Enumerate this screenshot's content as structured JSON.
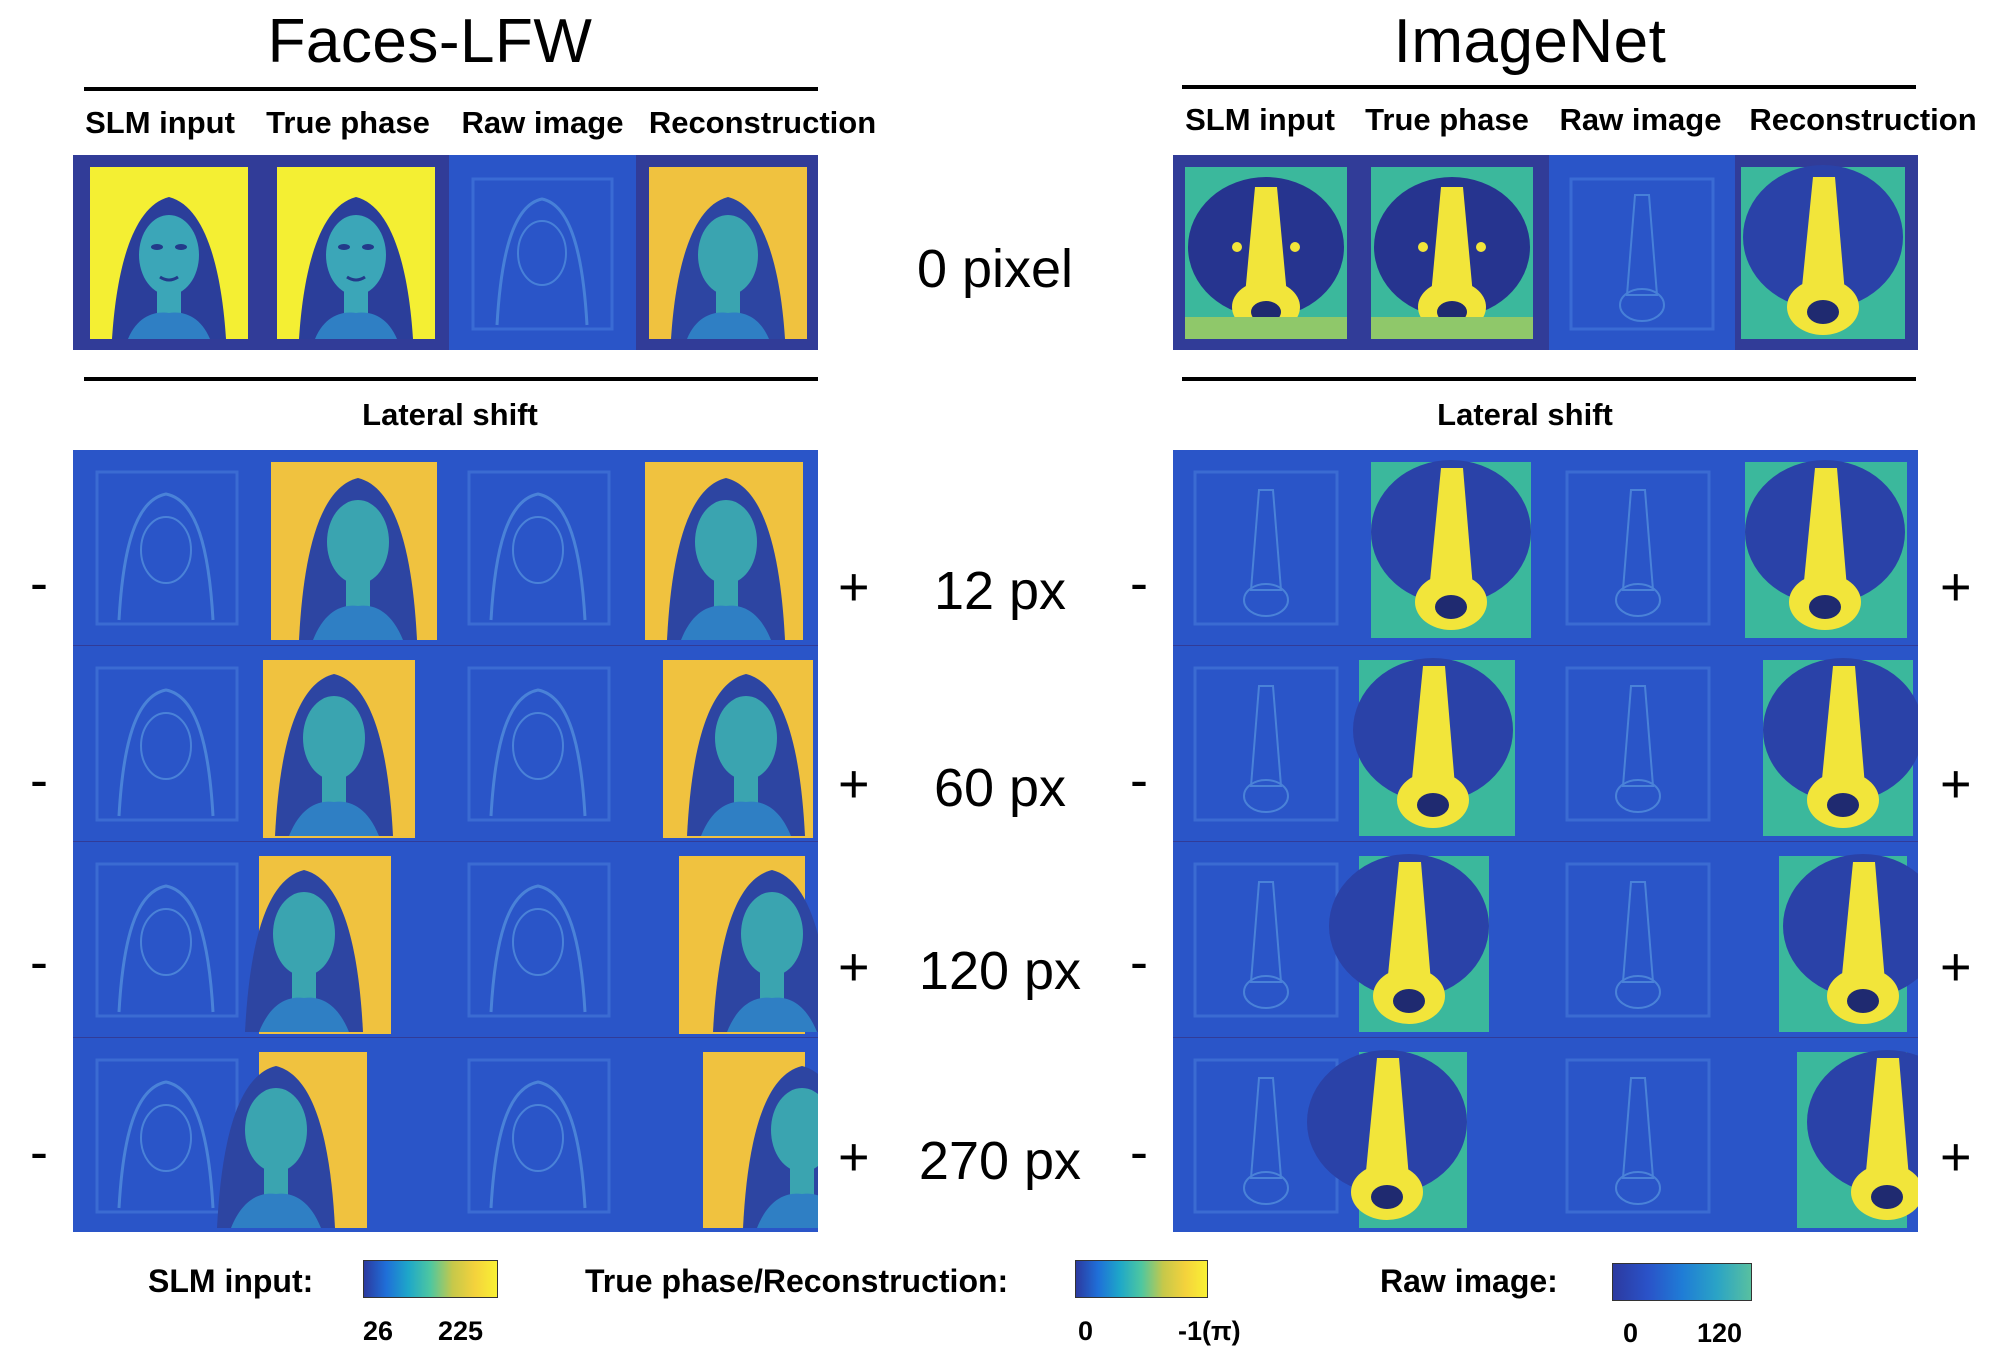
{
  "figure": {
    "left_dataset": "Faces-LFW",
    "right_dataset": "ImageNet",
    "column_headers": [
      "SLM input",
      "True phase",
      "Raw image",
      "Reconstruction"
    ],
    "section_label": "Lateral shift",
    "zero_row_label": "0 pixel",
    "shift_rows": [
      {
        "label": "12 px",
        "minus": "-",
        "plus": "+"
      },
      {
        "label": "60 px",
        "minus": "-",
        "plus": "+"
      },
      {
        "label": "120 px",
        "minus": "-",
        "plus": "+"
      },
      {
        "label": "270 px",
        "minus": "-",
        "plus": "+"
      }
    ]
  },
  "colorbars": {
    "slm": {
      "label": "SLM input:",
      "min": "26",
      "max": "225"
    },
    "phase": {
      "label": "True phase/Reconstruction:",
      "min": "0",
      "max": "-1(π)"
    },
    "raw": {
      "label": "Raw image:",
      "min": "0",
      "max": "120"
    }
  },
  "colors": {
    "panel_bg": "#313c98",
    "raw_blue": "#2a55c8",
    "yellow": "#f4e93a",
    "orange_yellow": "#f2c43e",
    "teal": "#3bb89c"
  }
}
